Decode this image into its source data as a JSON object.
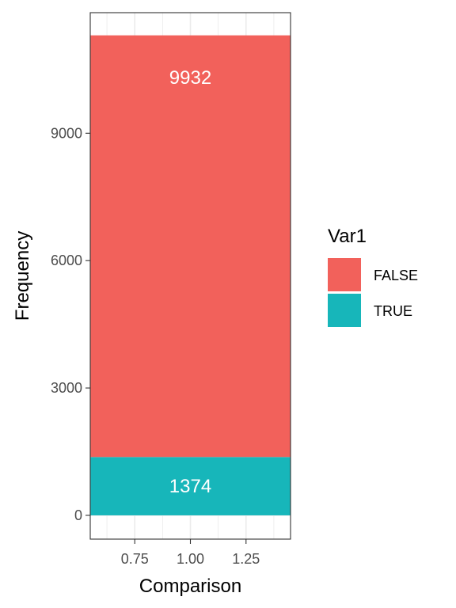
{
  "chart_data": {
    "type": "bar",
    "stacked": true,
    "x": [
      1.0
    ],
    "xlabel": "Comparison",
    "ylabel": "Frequency",
    "xlim": [
      0.55,
      1.45
    ],
    "ylim": [
      -560,
      11840
    ],
    "x_ticks": [
      0.75,
      1.0,
      1.25
    ],
    "x_tick_labels": [
      "0.75",
      "1.00",
      "1.25"
    ],
    "y_ticks": [
      0,
      3000,
      6000,
      9000
    ],
    "y_tick_labels": [
      "0",
      "3000",
      "6000",
      "9000"
    ],
    "series": [
      {
        "name": "TRUE",
        "values": [
          1374
        ],
        "color": "#17B6BA",
        "label": "1374"
      },
      {
        "name": "FALSE",
        "values": [
          9932
        ],
        "color": "#F2615B",
        "label": "9932"
      }
    ],
    "bar_width": 0.9,
    "grid": true,
    "legend": {
      "title": "Var1",
      "position": "right",
      "entries": [
        {
          "label": "FALSE",
          "color": "#F2615B"
        },
        {
          "label": "TRUE",
          "color": "#17B6BA"
        }
      ]
    }
  }
}
